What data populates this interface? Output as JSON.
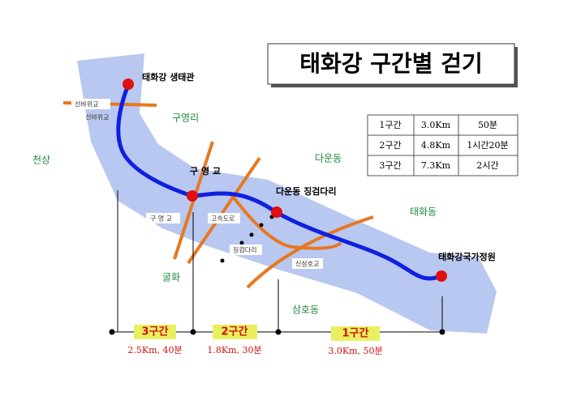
{
  "title": "태화강 구간별 걷기",
  "table": {
    "rows": [
      [
        "1구간",
        "3.0Km",
        "50분"
      ],
      [
        "2구간",
        "4.8Km",
        "1시간20분"
      ],
      [
        "3구간",
        "7.3Km",
        "2시간"
      ]
    ]
  },
  "labels": [
    "태화강 생태관",
    "선바위교",
    "선바위교",
    "구영리",
    "천상",
    "다운동",
    "구 영 교",
    "구 영 교",
    "고속도로",
    "다운동 징검다리",
    "징검다리",
    "태화동",
    "굴화",
    "신삼호교",
    "삼호동",
    "태화강국가정원"
  ],
  "segments": [
    {
      "name": "3구간",
      "detail": "2.5Km, 40분"
    },
    {
      "name": "2구간",
      "detail": "1.8Km, 30분"
    },
    {
      "name": "1구간",
      "detail": "3.0Km, 50분"
    }
  ]
}
